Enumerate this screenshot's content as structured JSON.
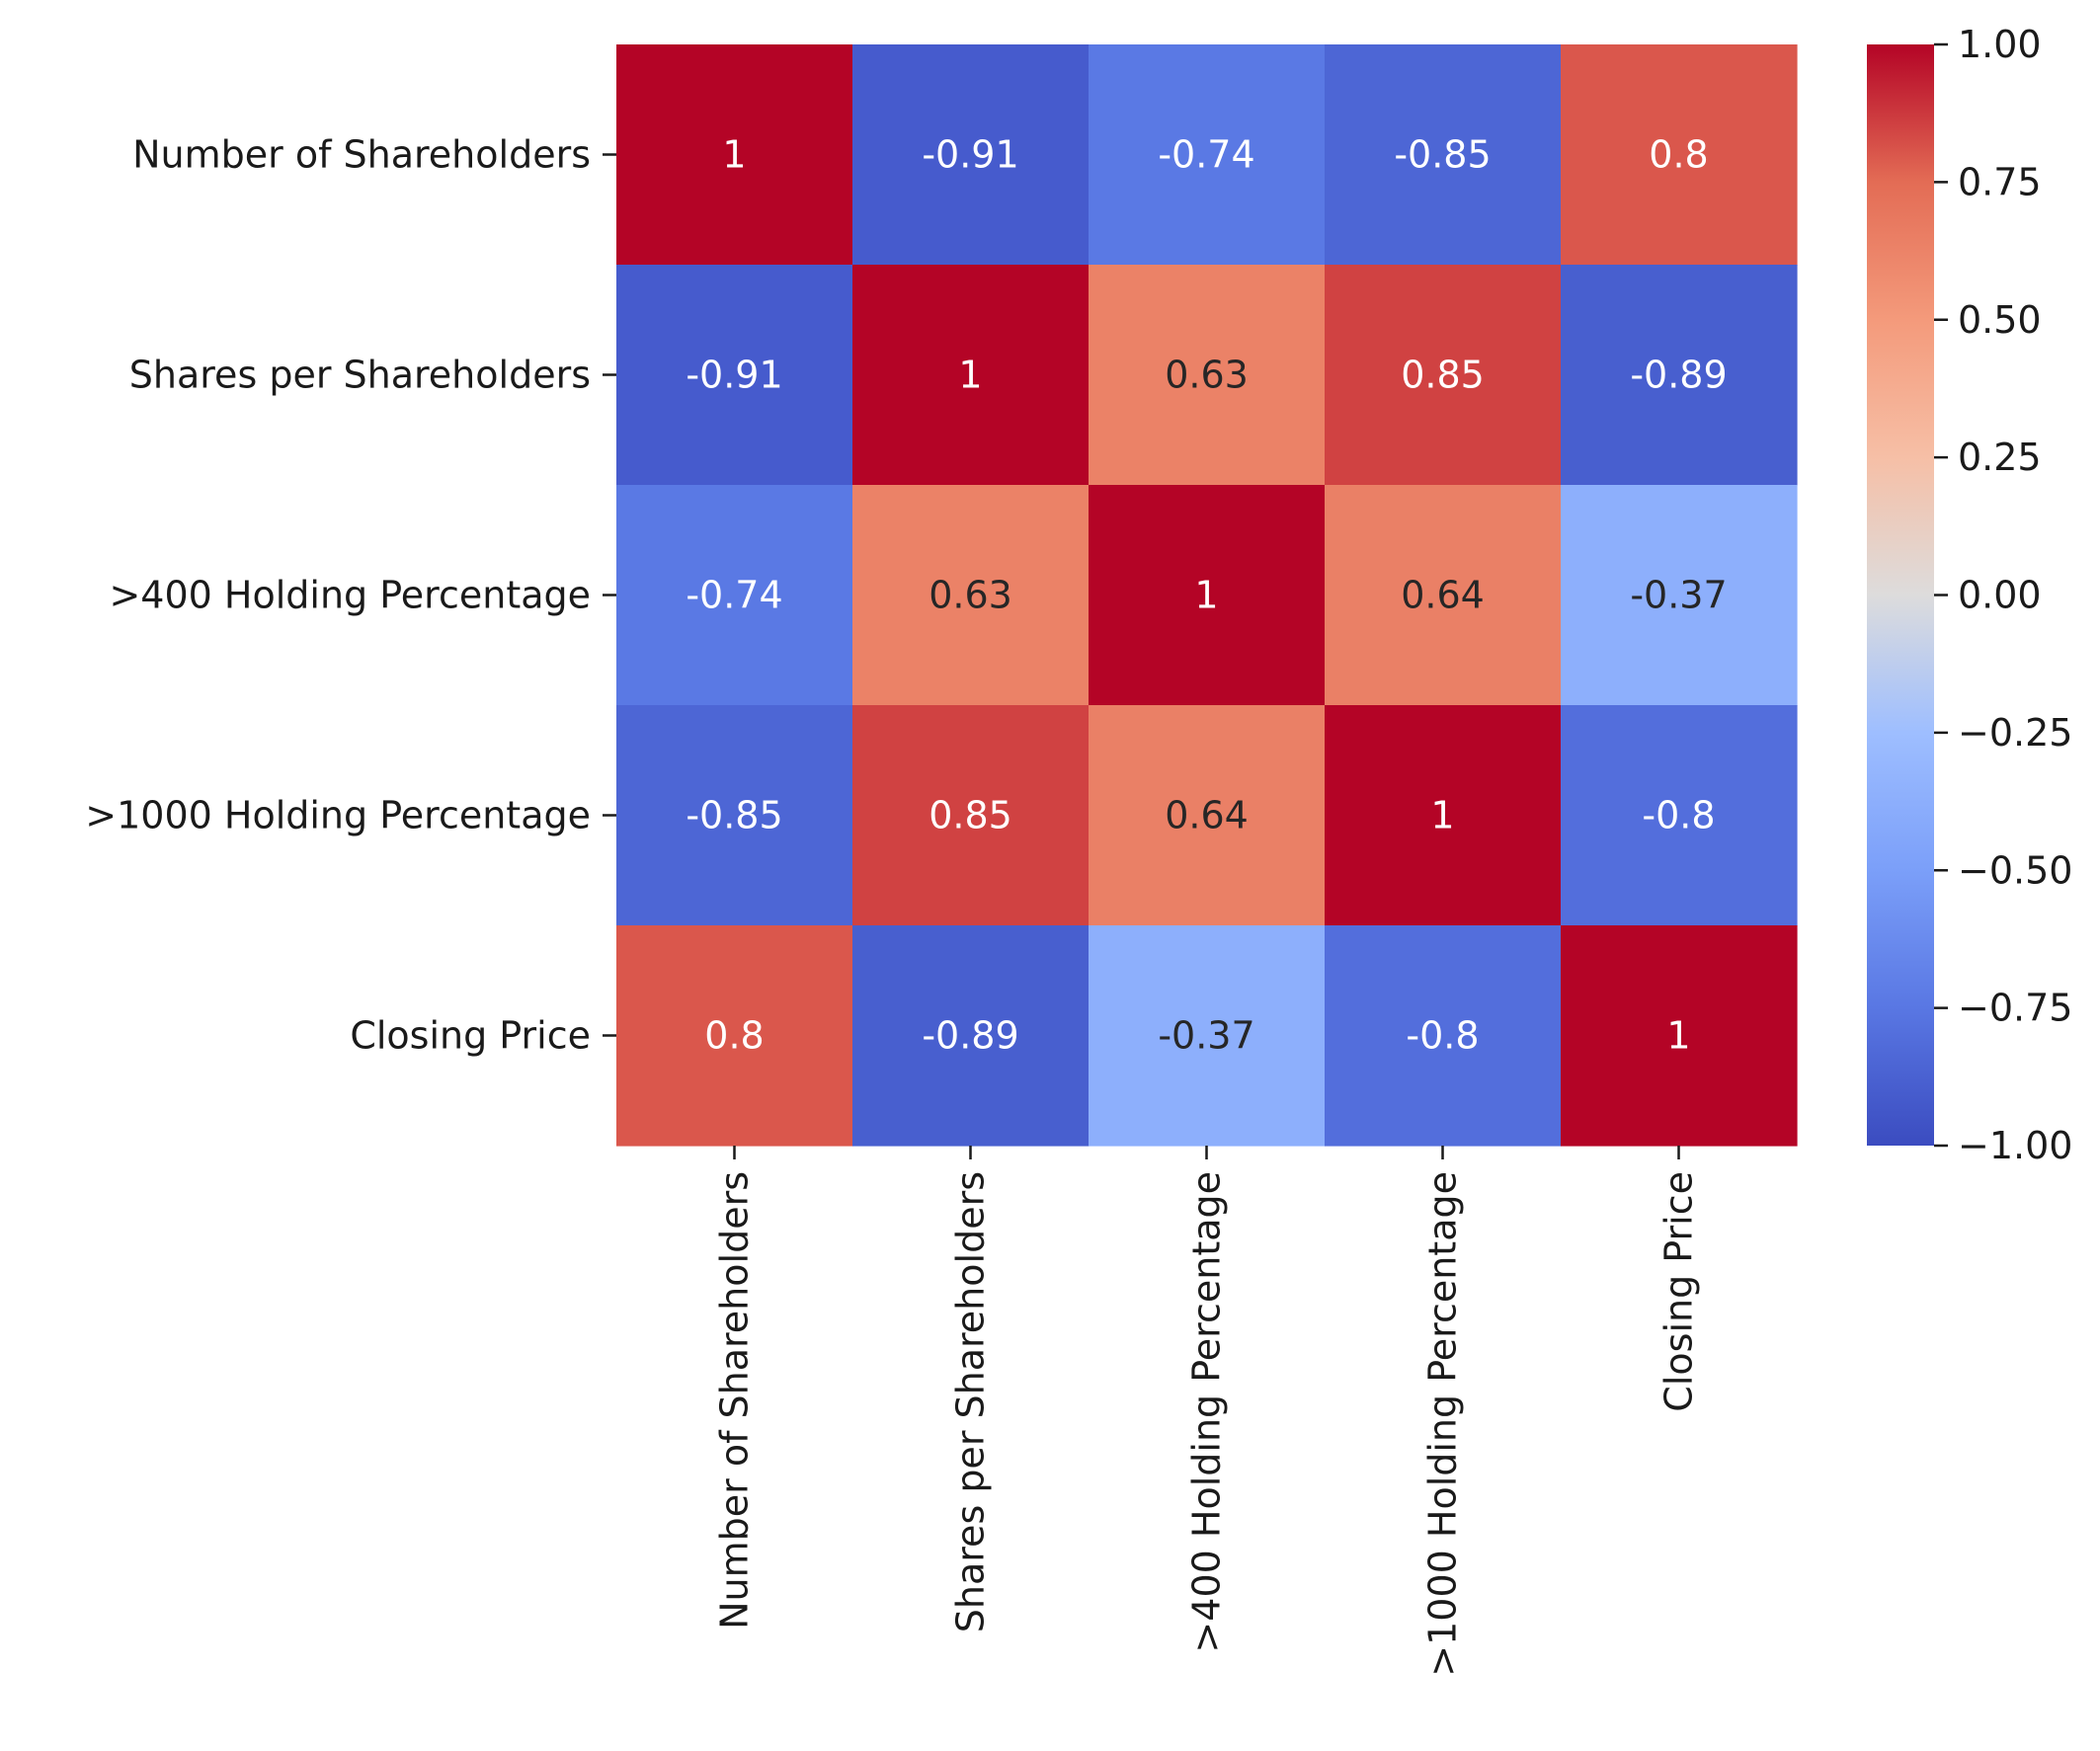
{
  "chart_data": {
    "type": "heatmap",
    "title": "",
    "xlabel": "",
    "ylabel": "",
    "colormap": "coolwarm",
    "vmin": -1.0,
    "vmax": 1.0,
    "x_categories": [
      "Number of Shareholders",
      "Shares per Shareholders",
      ">400 Holding Percentage",
      ">1000 Holding Percentage",
      "Closing Price"
    ],
    "y_categories": [
      "Number of Shareholders",
      "Shares per Shareholders",
      ">400 Holding Percentage",
      ">1000 Holding Percentage",
      "Closing Price"
    ],
    "values": [
      [
        1,
        -0.91,
        -0.74,
        -0.85,
        0.8
      ],
      [
        -0.91,
        1,
        0.63,
        0.85,
        -0.89
      ],
      [
        -0.74,
        0.63,
        1,
        0.64,
        -0.37
      ],
      [
        -0.85,
        0.85,
        0.64,
        1,
        -0.8
      ],
      [
        0.8,
        -0.89,
        -0.37,
        -0.8,
        1
      ]
    ],
    "cell_labels": [
      [
        "1",
        "-0.91",
        "-0.74",
        "-0.85",
        "0.8"
      ],
      [
        "-0.91",
        "1",
        "0.63",
        "0.85",
        "-0.89"
      ],
      [
        "-0.74",
        "0.63",
        "1",
        "0.64",
        "-0.37"
      ],
      [
        "-0.85",
        "0.85",
        "0.64",
        "1",
        "-0.8"
      ],
      [
        "0.8",
        "-0.89",
        "-0.37",
        "-0.8",
        "1"
      ]
    ],
    "colorbar": {
      "ticks": [
        1.0,
        0.75,
        0.5,
        0.25,
        0.0,
        -0.25,
        -0.5,
        -0.75,
        -1.0
      ],
      "tick_labels": [
        "1.00",
        "0.75",
        "0.50",
        "0.25",
        "0.00",
        "−0.25",
        "−0.50",
        "−0.75",
        "−1.00"
      ]
    },
    "grid": false,
    "legend": "colorbar-right"
  }
}
